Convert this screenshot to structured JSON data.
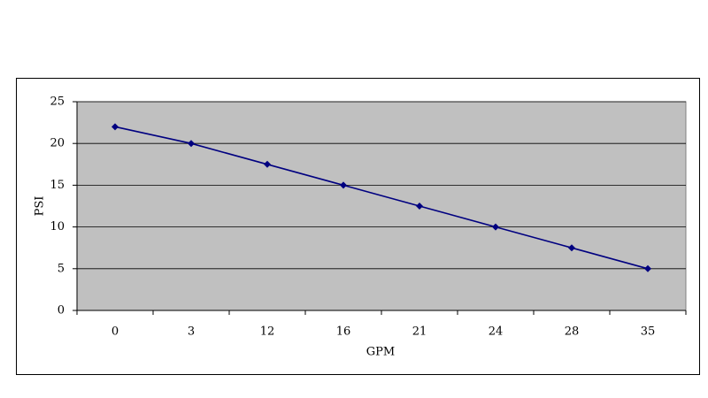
{
  "chart_data": {
    "type": "line",
    "x_label": "GPM",
    "y_label": "PSI",
    "categories": [
      "0",
      "3",
      "12",
      "16",
      "21",
      "24",
      "28",
      "35"
    ],
    "values": [
      22,
      20,
      17.5,
      15,
      12.5,
      10,
      7.5,
      5
    ],
    "color": "#000080",
    "plot_background": "#c0c0c0",
    "ylim": [
      0,
      25
    ],
    "yticks": [
      0,
      5,
      10,
      15,
      20,
      25
    ],
    "grid": true
  }
}
